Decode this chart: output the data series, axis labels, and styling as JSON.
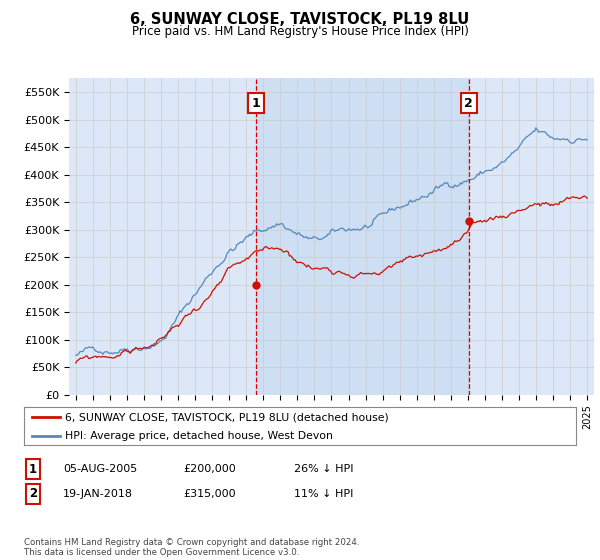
{
  "title": "6, SUNWAY CLOSE, TAVISTOCK, PL19 8LU",
  "subtitle": "Price paid vs. HM Land Registry's House Price Index (HPI)",
  "background_color": "#dce8f8",
  "plot_bg_color": "#dce8f8",
  "highlight_color": "#c5d8f0",
  "ylabel": "",
  "ylim": [
    0,
    575000
  ],
  "yticks": [
    0,
    50000,
    100000,
    150000,
    200000,
    250000,
    300000,
    350000,
    400000,
    450000,
    500000,
    550000
  ],
  "ytick_labels": [
    "£0",
    "£50K",
    "£100K",
    "£150K",
    "£200K",
    "£250K",
    "£300K",
    "£350K",
    "£400K",
    "£450K",
    "£500K",
    "£550K"
  ],
  "sale1_date_num": 2005.58,
  "sale1_price": 200000,
  "sale1_label": "1",
  "sale2_date_num": 2018.05,
  "sale2_price": 315000,
  "sale2_label": "2",
  "legend_line1": "6, SUNWAY CLOSE, TAVISTOCK, PL19 8LU (detached house)",
  "legend_line2": "HPI: Average price, detached house, West Devon",
  "table_row1": [
    "1",
    "05-AUG-2005",
    "£200,000",
    "26% ↓ HPI"
  ],
  "table_row2": [
    "2",
    "19-JAN-2018",
    "£315,000",
    "11% ↓ HPI"
  ],
  "footer": "Contains HM Land Registry data © Crown copyright and database right 2024.\nThis data is licensed under the Open Government Licence v3.0.",
  "hpi_color": "#5588bb",
  "price_color": "#cc1100",
  "vline_color": "#dd0000",
  "grid_color": "#cccccc"
}
